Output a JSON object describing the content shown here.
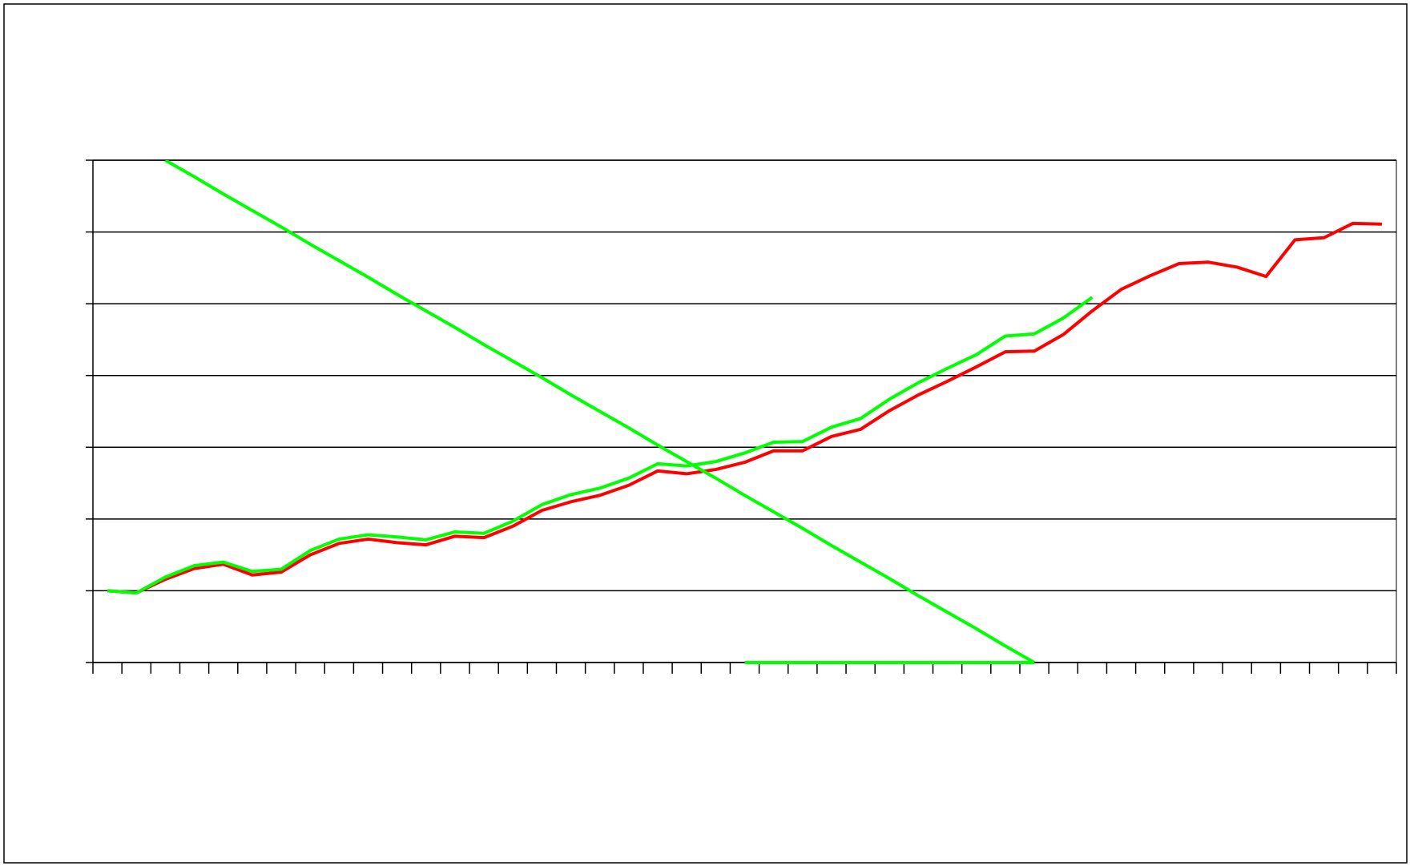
{
  "chart_data": {
    "type": "line",
    "categories": [
      null,
      null,
      null,
      null,
      null,
      null,
      null,
      null,
      null,
      null,
      null,
      null,
      null,
      null,
      null,
      null,
      null,
      null,
      null,
      null,
      null,
      null,
      null,
      null,
      null,
      null,
      null,
      null,
      null,
      null,
      null,
      null,
      null,
      null,
      null,
      null,
      null,
      null,
      null,
      null,
      null,
      null,
      null,
      null,
      null
    ],
    "series": [
      {
        "color": "#ff0000",
        "values": [
          1.0,
          0.97,
          1.16,
          1.31,
          1.37,
          1.22,
          1.26,
          1.5,
          1.66,
          1.72,
          1.67,
          1.64,
          1.76,
          1.74,
          1.9,
          2.12,
          2.24,
          2.33,
          2.47,
          2.67,
          2.63,
          2.69,
          2.79,
          2.95,
          2.95,
          3.15,
          3.25,
          3.51,
          3.73,
          3.92,
          4.12,
          4.33,
          4.34,
          4.57,
          4.9,
          5.2,
          5.39,
          5.56,
          5.58,
          5.51,
          5.38,
          5.89,
          5.92,
          6.12,
          6.11
        ]
      },
      {
        "color": "#00ff00",
        "values": [
          1.0,
          0.97,
          1.19,
          1.35,
          1.4,
          1.27,
          1.3,
          1.56,
          1.72,
          1.78,
          1.75,
          1.71,
          1.82,
          1.8,
          1.97,
          2.2,
          2.34,
          2.43,
          2.57,
          2.77,
          2.74,
          2.8,
          2.92,
          3.07,
          3.08,
          3.28,
          3.4,
          3.67,
          3.9,
          4.1,
          4.29,
          4.55,
          4.58,
          4.8,
          5.09,
          null,
          null,
          null,
          null,
          null,
          null,
          null,
          null,
          null,
          null
        ]
      },
      {
        "color": "#00ff00",
        "values": [
          null,
          null,
          7.0,
          6.77,
          6.53,
          6.3,
          6.07,
          5.83,
          5.6,
          5.37,
          5.13,
          4.9,
          4.67,
          4.43,
          4.2,
          3.97,
          3.73,
          3.5,
          3.27,
          3.03,
          2.8,
          2.57,
          2.33,
          2.1,
          1.87,
          1.63,
          1.4,
          1.17,
          0.93,
          0.7,
          0.47,
          0.23,
          0,
          null,
          null,
          null,
          null,
          null,
          null,
          null,
          null,
          null,
          null,
          null,
          null
        ]
      },
      {
        "color": "#00ff00",
        "values": [
          null,
          null,
          null,
          null,
          null,
          null,
          null,
          null,
          null,
          null,
          null,
          null,
          null,
          null,
          null,
          null,
          null,
          null,
          null,
          null,
          null,
          null,
          0,
          0,
          0,
          0,
          0,
          0,
          0,
          0,
          0,
          0,
          0,
          null,
          null,
          null,
          null,
          null,
          null,
          null,
          null,
          null,
          null,
          null,
          null
        ]
      }
    ],
    "ylim": [
      0,
      7
    ],
    "yticks": [
      0,
      1,
      2,
      3,
      4,
      5,
      6,
      7
    ],
    "grid": true
  }
}
